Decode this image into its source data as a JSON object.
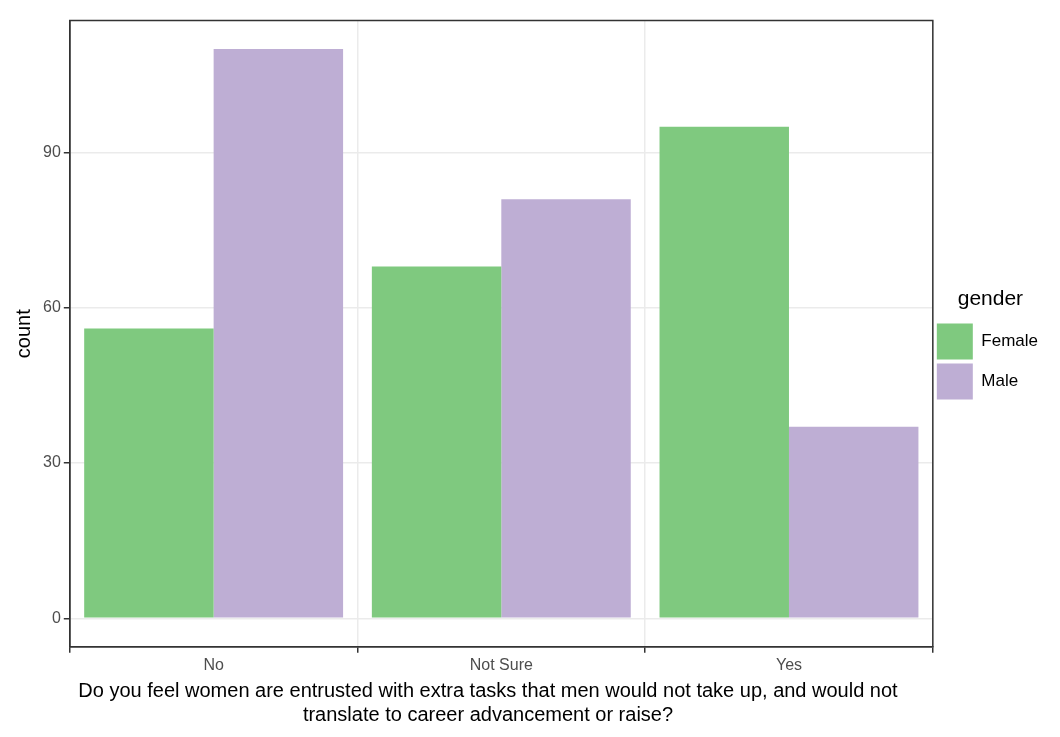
{
  "chart_data": {
    "type": "bar",
    "xlabel": "Do you feel women are entrusted with extra tasks that men would not take up, and would not translate to career advancement or raise?",
    "ylabel": "count",
    "legend_title": "gender",
    "categories": [
      "No",
      "Not Sure",
      "Yes"
    ],
    "series": [
      {
        "name": "Female",
        "color": "#7fc97f",
        "values": [
          56,
          68,
          95
        ]
      },
      {
        "name": "Male",
        "color": "#beaed4",
        "values": [
          110,
          81,
          37
        ]
      }
    ],
    "ylim": [
      -5.5,
      115.5
    ],
    "yticks": [
      0,
      30,
      60,
      90
    ],
    "grid": true,
    "legend": "right"
  }
}
